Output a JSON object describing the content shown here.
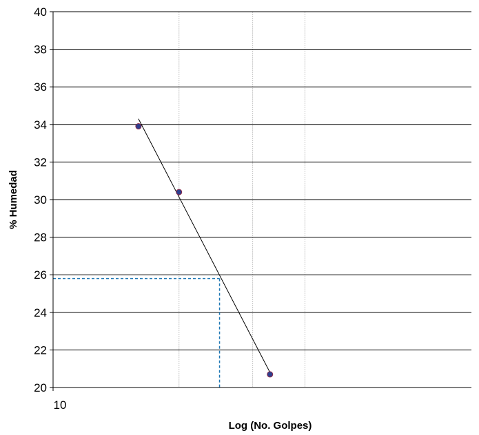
{
  "chart_data": {
    "type": "scatter",
    "title": "",
    "xlabel": "Log (No. Golpes)",
    "ylabel": "% Humedad",
    "x_scale": "log",
    "xlim": [
      10,
      100
    ],
    "ylim": [
      20,
      40
    ],
    "y_ticks": [
      20,
      22,
      24,
      26,
      28,
      30,
      32,
      34,
      36,
      38,
      40
    ],
    "y_tick_labels": [
      "20",
      "22",
      "24",
      "26",
      "28",
      "30",
      "32",
      "34",
      "36",
      "38",
      "40"
    ],
    "x_tick_labels": [
      "10"
    ],
    "x_minor_gridlines": [
      20,
      30,
      40
    ],
    "y_grid": true,
    "legend": "none",
    "series": [
      {
        "points": [
          {
            "x": 16,
            "y": 33.9
          },
          {
            "x": 20,
            "y": 30.4
          },
          {
            "x": 33,
            "y": 20.7
          }
        ],
        "marker_color": "#2e3f8f"
      }
    ],
    "trendline": {
      "from": {
        "x": 16,
        "y": 34.3
      },
      "to": {
        "x": 33,
        "y": 20.8
      },
      "color": "#000000"
    },
    "reference": {
      "x": 25,
      "y": 25.8,
      "color": "#1f77b4"
    },
    "colors": {
      "gridline": "#000000",
      "minor_gridline": "#c8c8c8",
      "reference_line": "#1f77b4"
    }
  }
}
